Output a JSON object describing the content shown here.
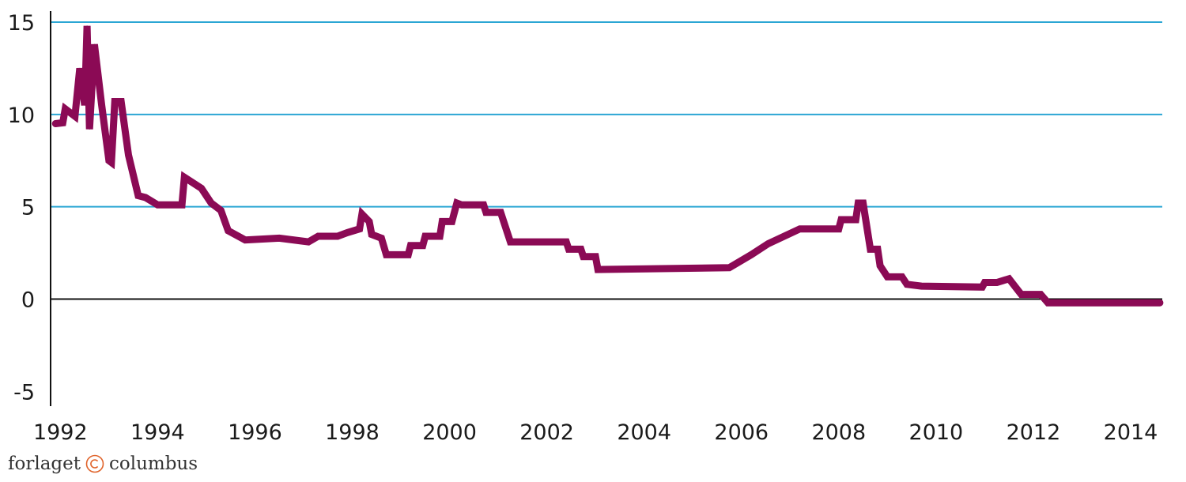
{
  "chart_data": {
    "type": "line",
    "title": "",
    "xlabel": "",
    "ylabel": "",
    "xlim": [
      1991.8,
      2014.65
    ],
    "ylim": [
      -5.8,
      15.6
    ],
    "x_ticks": [
      1992,
      1994,
      1996,
      1998,
      2000,
      2002,
      2004,
      2006,
      2008,
      2010,
      2012,
      2014
    ],
    "x_tick_labels": [
      "1992",
      "1994",
      "1996",
      "1998",
      "2000",
      "2002",
      "2004",
      "2006",
      "2008",
      "2010",
      "2012",
      "2014"
    ],
    "y_ticks": [
      15,
      10,
      5,
      0,
      -5
    ],
    "y_tick_labels": [
      "15",
      "10",
      "5",
      "0",
      "-5"
    ],
    "grid": true,
    "colors": {
      "line": "#8b0a55",
      "grid": "#2ba6d4",
      "zero_line": "#111111",
      "axis": "#111111"
    },
    "series": [
      {
        "values": [
          [
            1991.9,
            9.5
          ],
          [
            1992.05,
            9.55
          ],
          [
            1992.1,
            10.3
          ],
          [
            1992.3,
            9.9
          ],
          [
            1992.4,
            12.5
          ],
          [
            1992.5,
            10.5
          ],
          [
            1992.55,
            14.8
          ],
          [
            1992.6,
            9.2
          ],
          [
            1992.7,
            13.8
          ],
          [
            1992.85,
            10.5
          ],
          [
            1993.0,
            7.5
          ],
          [
            1993.05,
            7.4
          ],
          [
            1993.12,
            10.7
          ],
          [
            1993.25,
            10.7
          ],
          [
            1993.4,
            7.8
          ],
          [
            1993.6,
            5.6
          ],
          [
            1993.75,
            5.5
          ],
          [
            1994.0,
            5.1
          ],
          [
            1994.5,
            5.1
          ],
          [
            1994.55,
            6.6
          ],
          [
            1994.9,
            6.0
          ],
          [
            1995.1,
            5.2
          ],
          [
            1995.3,
            4.8
          ],
          [
            1995.45,
            3.7
          ],
          [
            1995.8,
            3.2
          ],
          [
            1996.5,
            3.3
          ],
          [
            1997.1,
            3.1
          ],
          [
            1997.3,
            3.4
          ],
          [
            1997.7,
            3.4
          ],
          [
            1997.9,
            3.6
          ],
          [
            1998.15,
            3.8
          ],
          [
            1998.2,
            4.6
          ],
          [
            1998.35,
            4.2
          ],
          [
            1998.4,
            3.5
          ],
          [
            1998.6,
            3.3
          ],
          [
            1998.7,
            2.4
          ],
          [
            1999.15,
            2.4
          ],
          [
            1999.2,
            2.9
          ],
          [
            1999.45,
            2.9
          ],
          [
            1999.5,
            3.4
          ],
          [
            1999.8,
            3.4
          ],
          [
            1999.85,
            4.2
          ],
          [
            2000.05,
            4.2
          ],
          [
            2000.15,
            5.2
          ],
          [
            2000.25,
            5.1
          ],
          [
            2000.7,
            5.1
          ],
          [
            2000.75,
            4.7
          ],
          [
            2001.05,
            4.7
          ],
          [
            2001.25,
            3.1
          ],
          [
            2002.4,
            3.1
          ],
          [
            2002.45,
            2.7
          ],
          [
            2002.7,
            2.7
          ],
          [
            2002.75,
            2.3
          ],
          [
            2003.0,
            2.3
          ],
          [
            2003.05,
            1.6
          ],
          [
            2005.75,
            1.7
          ],
          [
            2006.2,
            2.4
          ],
          [
            2006.55,
            3.0
          ],
          [
            2007.2,
            3.8
          ],
          [
            2008.0,
            3.8
          ],
          [
            2008.05,
            4.3
          ],
          [
            2008.35,
            4.3
          ],
          [
            2008.4,
            5.2
          ],
          [
            2008.5,
            5.2
          ],
          [
            2008.65,
            2.7
          ],
          [
            2008.8,
            2.7
          ],
          [
            2008.85,
            1.8
          ],
          [
            2009.0,
            1.2
          ],
          [
            2009.3,
            1.2
          ],
          [
            2009.4,
            0.8
          ],
          [
            2009.7,
            0.7
          ],
          [
            2010.95,
            0.65
          ],
          [
            2011.0,
            0.9
          ],
          [
            2011.25,
            0.9
          ],
          [
            2011.5,
            1.1
          ],
          [
            2011.75,
            0.25
          ],
          [
            2012.15,
            0.25
          ],
          [
            2012.3,
            -0.2
          ],
          [
            2014.6,
            -0.2
          ]
        ]
      }
    ]
  },
  "brand": {
    "left": "forlaget",
    "right": "columbus"
  }
}
